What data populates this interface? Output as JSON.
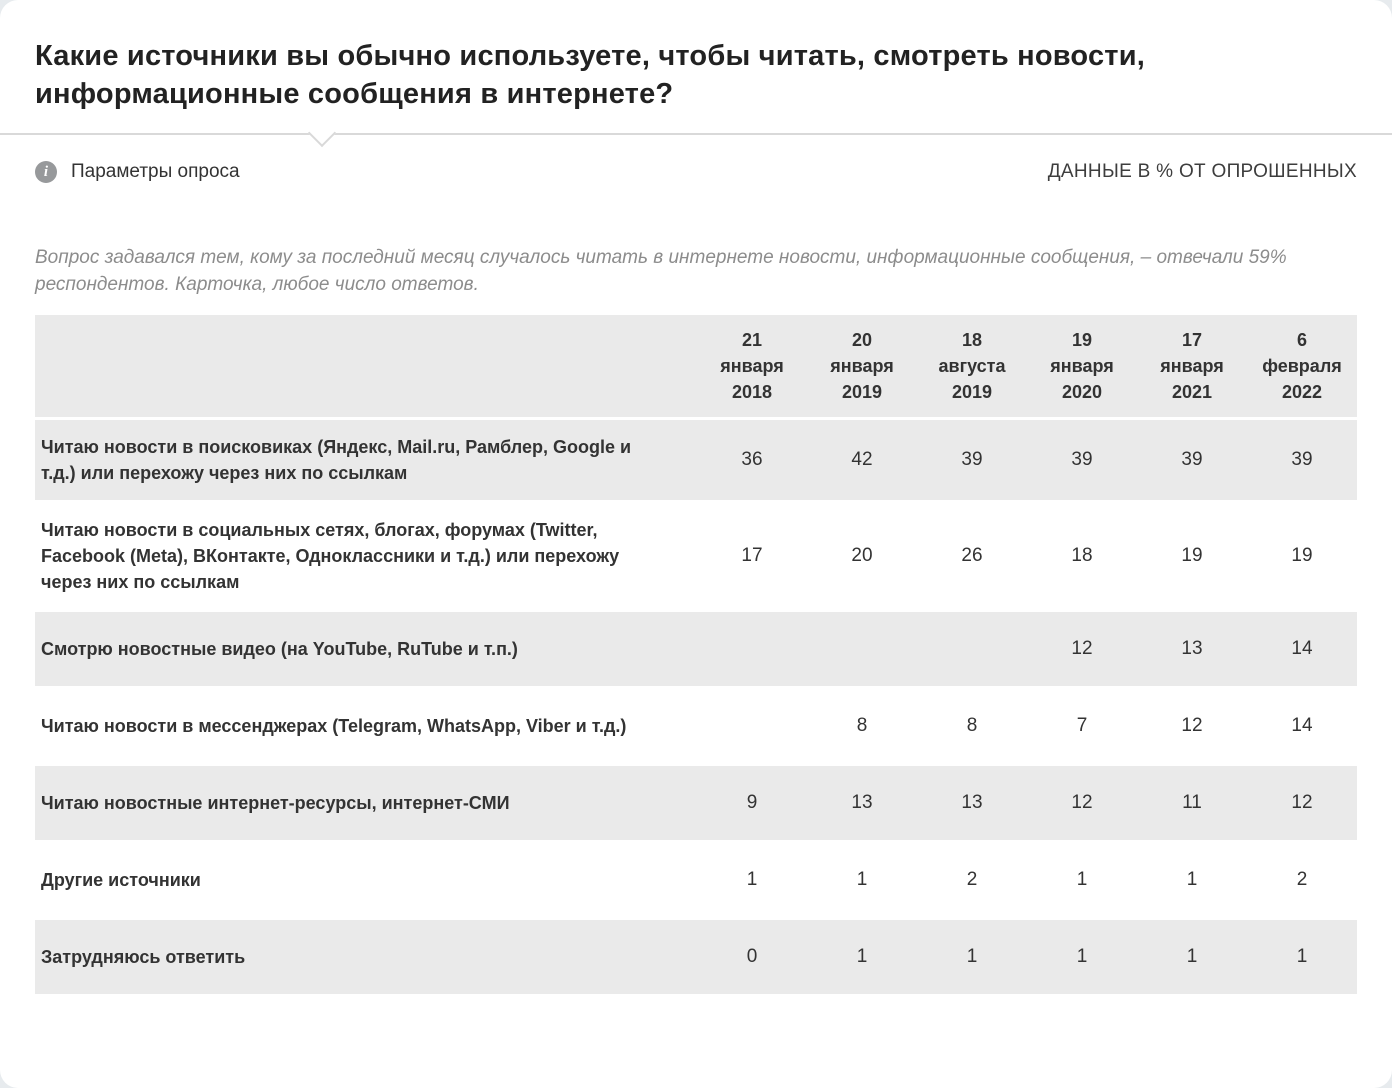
{
  "header": {
    "title": "Какие источники вы обычно используете, чтобы читать, смотреть новости, информационные сообщения в интернете?",
    "params_tab": "Параметры опроса",
    "info_glyph": "i",
    "units_label": "ДАННЫЕ В % ОТ ОПРОШЕННЫХ"
  },
  "note": "Вопрос задавался тем, кому за последний месяц случалось читать в интернете новости, информационные сообщения, – отвечали 59% респондентов. Карточка, любое число ответов.",
  "colors": {
    "row_gray": "#eaeaea",
    "text_dark": "#333333",
    "note_gray": "#8c8c8c",
    "divider": "#d9d9d9"
  },
  "chart_data": {
    "type": "table",
    "title": "Какие источники вы обычно используете, чтобы читать, смотреть новости, информационные сообщения в интернете?",
    "columns": [
      "21 января 2018",
      "20 января 2019",
      "18 августа 2019",
      "19 января 2020",
      "17 января 2021",
      "6 февраля 2022"
    ],
    "rows": [
      {
        "label": "Читаю новости в поисковиках (Яндекс, Mail.ru, Рамблер, Google и т.д.) или перехожу через них по ссылкам",
        "values": [
          36,
          42,
          39,
          39,
          39,
          39
        ]
      },
      {
        "label": "Читаю новости в социальных сетях, блогах, форумах (Twitter, Facebook (Meta), ВКонтакте, Одноклассники и т.д.) или перехожу через них по ссылкам",
        "values": [
          17,
          20,
          26,
          18,
          19,
          19
        ]
      },
      {
        "label": "Смотрю новостные видео (на YouTube, RuTube и т.п.)",
        "values": [
          null,
          null,
          null,
          12,
          13,
          14
        ]
      },
      {
        "label": "Читаю новости в мессенджерах (Telegram, WhatsApp, Viber и т.д.)",
        "values": [
          null,
          8,
          8,
          7,
          12,
          14
        ]
      },
      {
        "label": "Читаю новостные интернет-ресурсы, интернет-СМИ",
        "values": [
          9,
          13,
          13,
          12,
          11,
          12
        ]
      },
      {
        "label": "Другие источники",
        "values": [
          1,
          1,
          2,
          1,
          1,
          2
        ]
      },
      {
        "label": "Затрудняюсь ответить",
        "values": [
          0,
          1,
          1,
          1,
          1,
          1
        ]
      }
    ]
  }
}
